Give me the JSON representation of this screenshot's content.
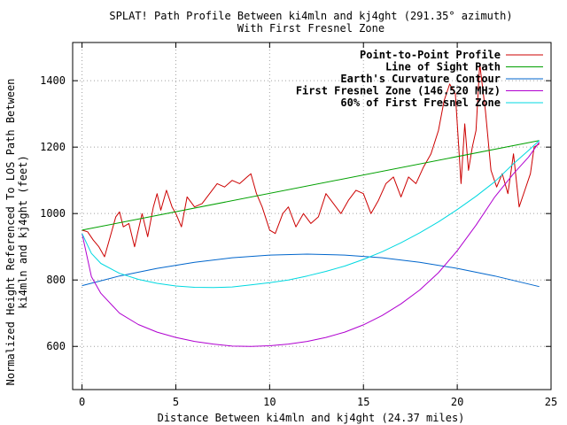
{
  "chart_data": {
    "type": "line",
    "title_line1": "SPLAT! Path Profile Between ki4mln and kj4ght (291.35° azimuth)",
    "title_line2": "With First Fresnel Zone",
    "xlabel": "Distance Between ki4mln and kj4ght (24.37 miles)",
    "ylabel_line1": "Normalized Height Referenced To LOS Path Between",
    "ylabel_line2": "ki4mln and kj4ght (feet)",
    "xlim": [
      -0.5,
      25
    ],
    "ylim": [
      470,
      1515
    ],
    "xticks": [
      0,
      5,
      10,
      15,
      20,
      25
    ],
    "yticks": [
      600,
      800,
      1000,
      1200,
      1400
    ],
    "grid": true,
    "legend_position": "top-right",
    "series": [
      {
        "name": "Point-to-Point Profile",
        "color": "#cc0000",
        "x": [
          0,
          0.3,
          0.6,
          0.9,
          1.2,
          1.5,
          1.8,
          2.0,
          2.2,
          2.5,
          2.8,
          3.0,
          3.2,
          3.5,
          3.8,
          4.0,
          4.2,
          4.5,
          4.8,
          5.0,
          5.3,
          5.6,
          6.0,
          6.4,
          6.8,
          7.2,
          7.6,
          8.0,
          8.4,
          8.8,
          9.0,
          9.3,
          9.6,
          10.0,
          10.3,
          10.7,
          11.0,
          11.4,
          11.8,
          12.2,
          12.6,
          13.0,
          13.4,
          13.8,
          14.2,
          14.6,
          15.0,
          15.4,
          15.8,
          16.2,
          16.6,
          17.0,
          17.4,
          17.8,
          18.2,
          18.6,
          19.0,
          19.3,
          19.6,
          19.9,
          20.2,
          20.4,
          20.6,
          20.8,
          21.0,
          21.2,
          21.5,
          21.8,
          22.1,
          22.4,
          22.7,
          23.0,
          23.3,
          23.6,
          23.9,
          24.1,
          24.37
        ],
        "values": [
          950,
          945,
          920,
          900,
          870,
          930,
          990,
          1005,
          960,
          970,
          900,
          950,
          1000,
          930,
          1020,
          1060,
          1010,
          1070,
          1020,
          1000,
          960,
          1050,
          1020,
          1030,
          1060,
          1090,
          1080,
          1100,
          1090,
          1110,
          1120,
          1060,
          1020,
          950,
          940,
          1000,
          1020,
          960,
          1000,
          970,
          990,
          1060,
          1030,
          1000,
          1040,
          1070,
          1060,
          1000,
          1040,
          1090,
          1110,
          1050,
          1110,
          1090,
          1140,
          1180,
          1250,
          1340,
          1390,
          1360,
          1090,
          1270,
          1130,
          1200,
          1250,
          1450,
          1310,
          1130,
          1080,
          1120,
          1060,
          1180,
          1020,
          1070,
          1120,
          1200,
          1210
        ]
      },
      {
        "name": "Line of Sight Path",
        "color": "#00a000",
        "x": [
          0,
          24.37
        ],
        "values": [
          950,
          1220
        ]
      },
      {
        "name": "Earth's Curvature Contour",
        "color": "#0066cc",
        "x": [
          0,
          2,
          4,
          6,
          8,
          10,
          12,
          14,
          16,
          18,
          20,
          22,
          24.37
        ],
        "values": [
          783,
          812,
          835,
          853,
          867,
          875,
          878,
          875,
          867,
          853,
          835,
          812,
          780
        ]
      },
      {
        "name": "First Fresnel Zone (146.520 MHz)",
        "color": "#b000d0",
        "x": [
          0,
          0.5,
          1,
          2,
          3,
          4,
          5,
          6,
          7,
          8,
          9,
          10,
          11,
          12,
          13,
          14,
          15,
          16,
          17,
          18,
          19,
          20,
          21,
          22,
          23,
          23.8,
          24.37
        ],
        "values": [
          940,
          810,
          760,
          700,
          666,
          643,
          627,
          615,
          607,
          601,
          600,
          602,
          607,
          615,
          627,
          643,
          665,
          693,
          728,
          770,
          822,
          888,
          965,
          1050,
          1120,
          1170,
          1215
        ]
      },
      {
        "name": "60% of First Fresnel Zone",
        "color": "#00d8e0",
        "x": [
          0,
          0.5,
          1,
          2,
          3,
          4,
          5,
          6,
          7,
          8,
          9,
          10,
          11,
          12,
          13,
          14,
          15,
          16,
          17,
          18,
          19,
          20,
          21,
          22,
          23,
          23.8,
          24.37
        ],
        "values": [
          940,
          880,
          850,
          820,
          802,
          790,
          782,
          778,
          777,
          779,
          785,
          792,
          800,
          812,
          826,
          842,
          862,
          885,
          912,
          942,
          975,
          1012,
          1052,
          1096,
          1150,
          1190,
          1220
        ]
      }
    ]
  }
}
